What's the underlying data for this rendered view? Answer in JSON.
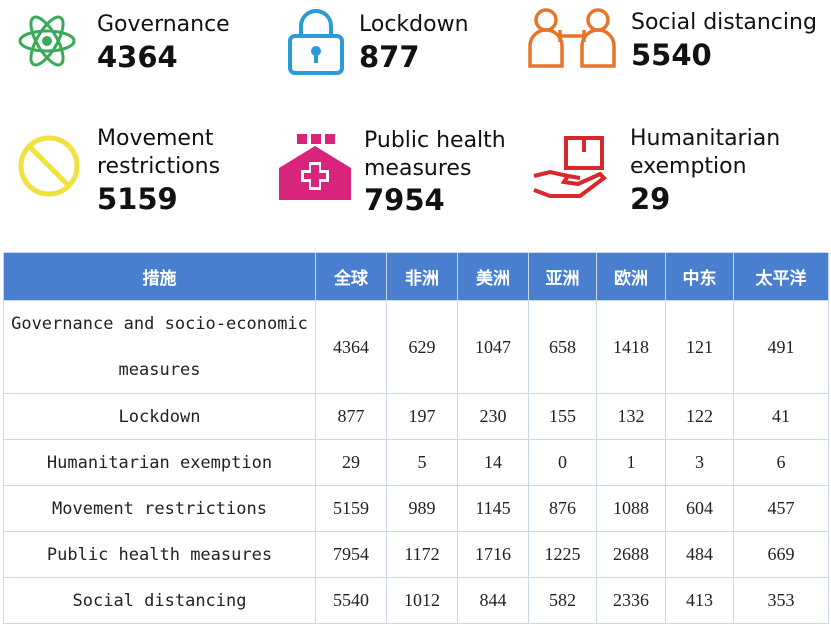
{
  "cards": [
    {
      "label_lines": [
        "Governance"
      ],
      "value": "4364",
      "icon": "atom-icon",
      "color": "#3aaa5a"
    },
    {
      "label_lines": [
        "Lockdown"
      ],
      "value": "877",
      "icon": "padlock-icon",
      "color": "#2a9ad8"
    },
    {
      "label_lines": [
        "Social distancing"
      ],
      "value": "5540",
      "icon": "social-distancing-icon",
      "color": "#e8742a"
    },
    {
      "label_lines": [
        "Movement",
        "restrictions"
      ],
      "value": "5159",
      "icon": "prohibited-icon",
      "color": "#f0e040"
    },
    {
      "label_lines": [
        "Public health",
        "measures"
      ],
      "value": "7954",
      "icon": "public-health-icon",
      "color": "#d8247a"
    },
    {
      "label_lines": [
        "Humanitarian",
        "exemption"
      ],
      "value": "29",
      "icon": "aid-hand-icon",
      "color": "#d8282a"
    }
  ],
  "table": {
    "headers": [
      "措施",
      "全球",
      "非洲",
      "美洲",
      "亚洲",
      "欧洲",
      "中东",
      "太平洋"
    ],
    "rows": [
      {
        "name": "Governance and socio-economic measures",
        "values": [
          "4364",
          "629",
          "1047",
          "658",
          "1418",
          "121",
          "491"
        ]
      },
      {
        "name": "Lockdown",
        "values": [
          "877",
          "197",
          "230",
          "155",
          "132",
          "122",
          "41"
        ]
      },
      {
        "name": "Humanitarian exemption",
        "values": [
          "29",
          "5",
          "14",
          "0",
          "1",
          "3",
          "6"
        ]
      },
      {
        "name": "Movement restrictions",
        "values": [
          "5159",
          "989",
          "1145",
          "876",
          "1088",
          "604",
          "457"
        ]
      },
      {
        "name": "Public health measures",
        "values": [
          "7954",
          "1172",
          "1716",
          "1225",
          "2688",
          "484",
          "669"
        ]
      },
      {
        "name": "Social distancing",
        "values": [
          "5540",
          "1012",
          "844",
          "582",
          "2336",
          "413",
          "353"
        ]
      }
    ]
  }
}
